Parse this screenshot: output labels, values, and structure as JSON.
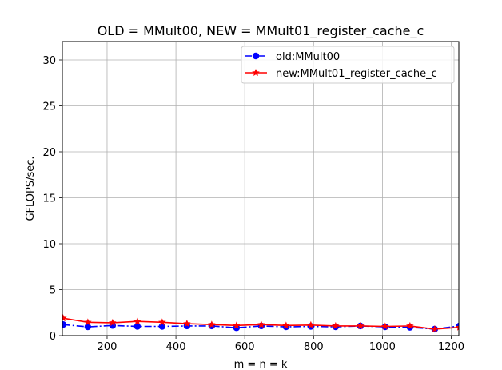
{
  "chart_data": {
    "type": "line",
    "title": "OLD = MMult00, NEW = MMult01_register_cache_c",
    "xlabel": "m = n = k",
    "ylabel": "GFLOPS/sec.",
    "xlim": [
      70,
      1222
    ],
    "ylim": [
      0,
      32
    ],
    "xticks": [
      200,
      400,
      600,
      800,
      1000,
      1200
    ],
    "yticks": [
      0,
      5,
      10,
      15,
      20,
      25,
      30
    ],
    "grid": true,
    "legend_position": "top-right",
    "x": [
      72,
      144,
      216,
      288,
      360,
      432,
      504,
      576,
      648,
      720,
      792,
      864,
      936,
      1008,
      1080,
      1152,
      1224
    ],
    "series": [
      {
        "name": "old:MMult00",
        "color": "#0000ff",
        "marker": "circle",
        "linestyle": "dash-dot",
        "values": [
          1.2,
          0.95,
          1.1,
          1.0,
          1.0,
          1.05,
          1.05,
          0.85,
          1.05,
          0.95,
          1.0,
          0.95,
          1.05,
          0.95,
          0.9,
          0.7,
          1.05
        ]
      },
      {
        "name": "new:MMult01_register_cache_c",
        "color": "#ff0000",
        "marker": "star",
        "linestyle": "solid",
        "values": [
          1.9,
          1.45,
          1.4,
          1.55,
          1.45,
          1.3,
          1.2,
          1.1,
          1.2,
          1.1,
          1.15,
          1.05,
          1.05,
          1.0,
          1.05,
          0.7,
          0.9
        ]
      }
    ]
  }
}
